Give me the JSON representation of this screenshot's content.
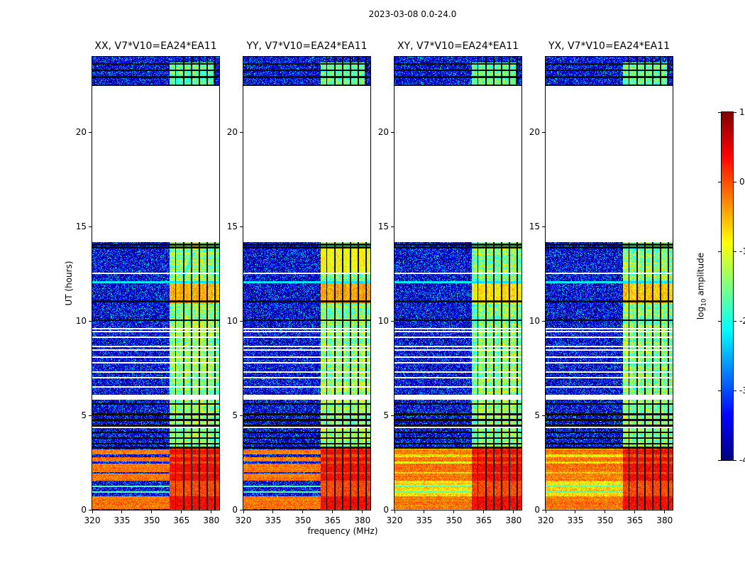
{
  "chart_data": {
    "type": "heatmap",
    "title": "2023-03-08 0.0-24.0",
    "xlabel": "frequency (MHz)",
    "ylabel": "UT (hours)",
    "x_range_mhz": [
      320,
      384
    ],
    "y_range_hours": [
      0,
      24
    ],
    "x_ticks": [
      320,
      335,
      350,
      365,
      380
    ],
    "y_ticks": [
      0,
      5,
      10,
      15,
      20
    ],
    "colorbar": {
      "label": "log10 amplitude",
      "label_prefix": "log",
      "label_sub": "10",
      "label_suffix": " amplitude",
      "ticks": [
        1,
        0,
        -1,
        -2,
        -3,
        -4
      ],
      "range": [
        -4,
        1
      ],
      "colormap": "jet"
    },
    "panels": [
      {
        "title": "XX, V7*V10=EA24*EA11",
        "low_time_style": "stripes",
        "band_hot_regions": [
          [
            10.9,
            11.95,
            -0.5
          ]
        ],
        "diagonal_streak": [
          12.3,
          13.6,
          366,
          4
        ]
      },
      {
        "title": "YY, V7*V10=EA24*EA11",
        "low_time_style": "stripes",
        "band_hot_regions": [
          [
            10.9,
            12.0,
            -0.45
          ],
          [
            12.6,
            13.95,
            -0.9
          ]
        ]
      },
      {
        "title": "XY, V7*V10=EA24*EA11",
        "low_time_style": "broad",
        "band_hot_regions": [
          [
            10.9,
            12.0,
            -0.75
          ]
        ]
      },
      {
        "title": "YX, V7*V10=EA24*EA11",
        "low_time_style": "broad",
        "band_hot_regions": [
          [
            10.9,
            12.0,
            -0.6
          ]
        ]
      }
    ],
    "features": {
      "data_blocks_hours": [
        [
          0,
          14.2
        ],
        [
          22.45,
          24.0
        ]
      ],
      "background_level": -3.75,
      "rfi_band_mhz": [
        359,
        384
      ],
      "rfi_band_level": -1.4,
      "top_block_band_mhz": [
        359,
        381
      ],
      "top_block_band_hours": [
        22.45,
        23.7
      ],
      "low_time_region_hours": [
        0,
        3.25
      ],
      "red_stripes_hours": [
        [
          0.02,
          0.72
        ],
        [
          1.55,
          1.9
        ],
        [
          2.0,
          2.45
        ],
        [
          2.55,
          2.8
        ],
        [
          2.95,
          3.18
        ]
      ],
      "cyan_lines_hours": [
        12.05
      ],
      "green_lines_hours": [
        0.95,
        1.25
      ],
      "white_gap_hours": [
        [
          5.82,
          6.08
        ]
      ],
      "white_lines_hours": [
        4.35,
        6.5,
        7.0,
        7.3,
        7.8,
        8.1,
        8.45,
        8.65,
        9.15,
        9.45,
        9.6,
        12.54
      ],
      "black_lines_hours": [
        23.62,
        23.28,
        22.92,
        22.48,
        14.05,
        13.9,
        11.05,
        10.05,
        5.6,
        5.05,
        4.75,
        4.45,
        4.1,
        3.8,
        3.5,
        3.3
      ],
      "band_vlines_mhz": [
        362,
        366,
        370,
        374,
        378,
        382
      ]
    }
  }
}
